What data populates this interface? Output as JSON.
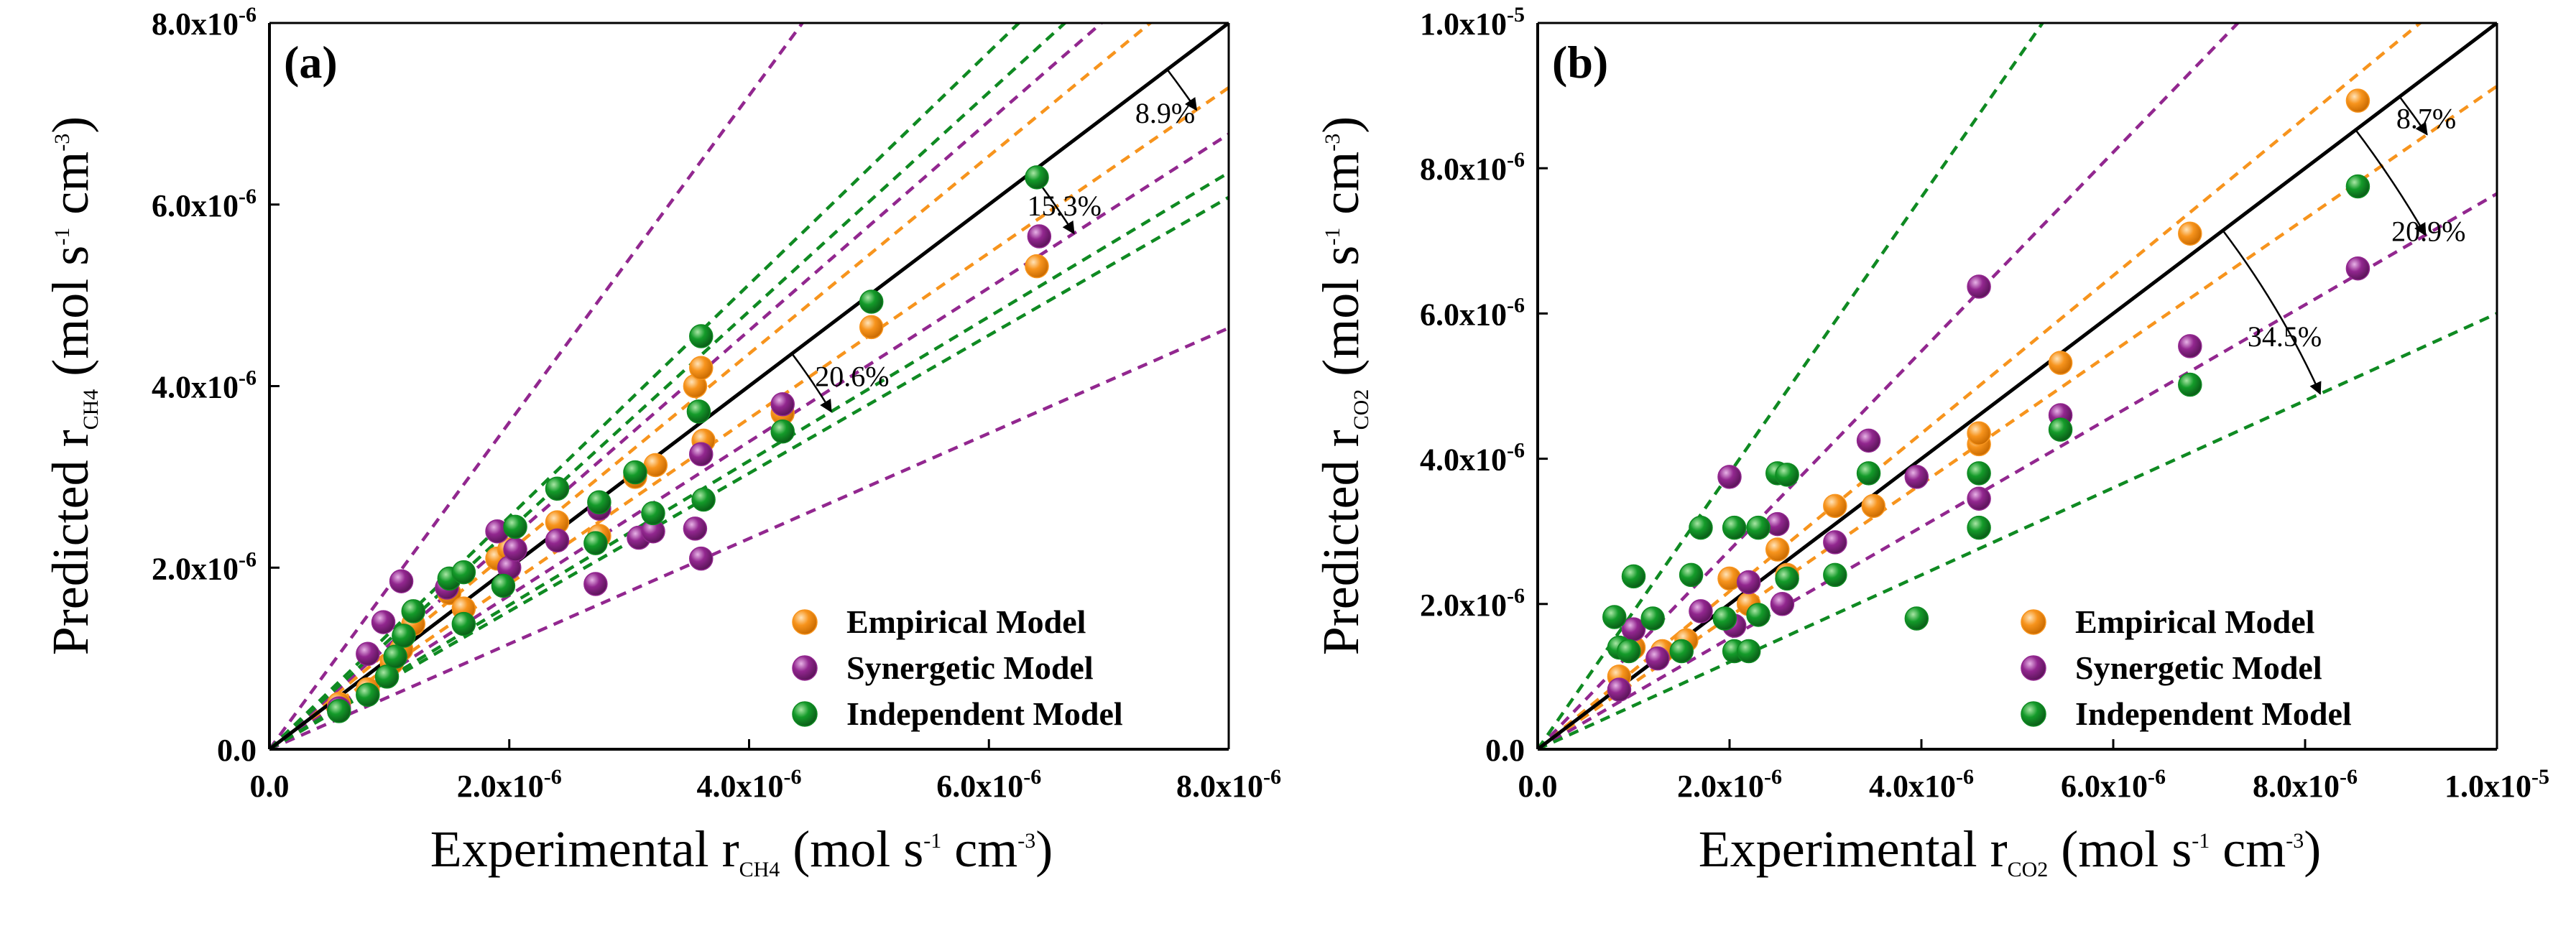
{
  "colors": {
    "empirical": "#f7941d",
    "synergetic": "#92278f",
    "independent": "#0f8a22",
    "parity": "#000000"
  },
  "chart_data": [
    {
      "type": "scatter",
      "panel_label": "(a)",
      "xlabel": {
        "main": "Experimental r",
        "sub": "CH4",
        "unit_a": " (mol s",
        "sup1": "-1",
        "unit_b": " cm",
        "sup2": "-3",
        "unit_c": ")"
      },
      "ylabel": {
        "main": "Predicted r",
        "sub": "CH4",
        "unit_a": " (mol s",
        "sup1": "-1",
        "unit_b": " cm",
        "sup2": "-3",
        "unit_c": ")"
      },
      "xlim": [
        0,
        8e-06
      ],
      "ylim": [
        0,
        8e-06
      ],
      "x_ticks": [
        {
          "value": 0,
          "mant": "0.0",
          "exp": ""
        },
        {
          "value": 2e-06,
          "mant": "2.0x10",
          "exp": "-6"
        },
        {
          "value": 4e-06,
          "mant": "4.0x10",
          "exp": "-6"
        },
        {
          "value": 6e-06,
          "mant": "6.0x10",
          "exp": "-6"
        },
        {
          "value": 8e-06,
          "mant": "8.0x10",
          "exp": "-6"
        }
      ],
      "y_ticks": [
        {
          "value": 0,
          "mant": "0.0",
          "exp": ""
        },
        {
          "value": 2e-06,
          "mant": "2.0x10",
          "exp": "-6"
        },
        {
          "value": 4e-06,
          "mant": "4.0x10",
          "exp": "-6"
        },
        {
          "value": 6e-06,
          "mant": "6.0x10",
          "exp": "-6"
        },
        {
          "value": 8e-06,
          "mant": "8.0x10",
          "exp": "-6"
        }
      ],
      "parity_line": {
        "slope": 1
      },
      "error_bands": [
        {
          "model": "empirical",
          "percent": "8.9%",
          "slopes": [
            1.089,
            0.911
          ]
        },
        {
          "model": "synergetic",
          "percent": "15.3%",
          "slopes": [
            1.153,
            0.847
          ]
        },
        {
          "model": "independent",
          "percent": "20.6%",
          "slopes": [
            1.206,
            0.794
          ]
        },
        {
          "model": "synergetic",
          "percent": "",
          "slopes": [
            1.8,
            0.58
          ]
        },
        {
          "model": "independent",
          "percent": "",
          "slopes": [
            1.28,
            0.76
          ]
        }
      ],
      "annotations": [
        {
          "text": "8.9%",
          "x": 7.22e-06,
          "y": 6.9e-06
        },
        {
          "text": "15.3%",
          "x": 6.32e-06,
          "y": 5.88e-06
        },
        {
          "text": "20.6%",
          "x": 4.55e-06,
          "y": 4e-06
        }
      ],
      "series": [
        {
          "name": "Empirical Model",
          "model": "empirical",
          "points": [
            [
              5.8e-07,
              5e-07
            ],
            [
              8.2e-07,
              6.6e-07
            ],
            [
              1.02e-06,
              9.5e-07
            ],
            [
              1.1e-06,
              1.1e-06
            ],
            [
              1.2e-06,
              1.38e-06
            ],
            [
              1.5e-06,
              1.72e-06
            ],
            [
              1.62e-06,
              1.55e-06
            ],
            [
              1.9e-06,
              2.1e-06
            ],
            [
              2e-06,
              2.2e-06
            ],
            [
              2.4e-06,
              2.5e-06
            ],
            [
              2.75e-06,
              2.35e-06
            ],
            [
              3.05e-06,
              3e-06
            ],
            [
              3.22e-06,
              3.13e-06
            ],
            [
              3.55e-06,
              4e-06
            ],
            [
              3.6e-06,
              4.2e-06
            ],
            [
              3.62e-06,
              3.4e-06
            ],
            [
              4.28e-06,
              3.7e-06
            ],
            [
              5.02e-06,
              4.65e-06
            ],
            [
              6.4e-06,
              5.32e-06
            ]
          ]
        },
        {
          "name": "Synergetic Model",
          "model": "synergetic",
          "points": [
            [
              5.8e-07,
              4.5e-07
            ],
            [
              8.2e-07,
              1.05e-06
            ],
            [
              9.5e-07,
              1.4e-06
            ],
            [
              1.1e-06,
              1.85e-06
            ],
            [
              1.48e-06,
              1.78e-06
            ],
            [
              1.9e-06,
              2.4e-06
            ],
            [
              2e-06,
              2e-06
            ],
            [
              2.05e-06,
              2.2e-06
            ],
            [
              2.4e-06,
              2.3e-06
            ],
            [
              2.72e-06,
              1.82e-06
            ],
            [
              2.75e-06,
              2.65e-06
            ],
            [
              3.08e-06,
              2.33e-06
            ],
            [
              3.2e-06,
              2.4e-06
            ],
            [
              3.55e-06,
              2.43e-06
            ],
            [
              3.6e-06,
              2.1e-06
            ],
            [
              3.6e-06,
              3.25e-06
            ],
            [
              4.28e-06,
              3.8e-06
            ],
            [
              6.42e-06,
              5.65e-06
            ]
          ]
        },
        {
          "name": "Independent Model",
          "model": "independent",
          "points": [
            [
              5.8e-07,
              4.2e-07
            ],
            [
              8.2e-07,
              6e-07
            ],
            [
              9.8e-07,
              8e-07
            ],
            [
              1.05e-06,
              1.02e-06
            ],
            [
              1.12e-06,
              1.25e-06
            ],
            [
              1.2e-06,
              1.52e-06
            ],
            [
              1.5e-06,
              1.88e-06
            ],
            [
              1.62e-06,
              1.38e-06
            ],
            [
              1.62e-06,
              1.95e-06
            ],
            [
              1.95e-06,
              1.8e-06
            ],
            [
              2.05e-06,
              2.45e-06
            ],
            [
              2.4e-06,
              2.87e-06
            ],
            [
              2.72e-06,
              2.27e-06
            ],
            [
              2.75e-06,
              2.72e-06
            ],
            [
              3.05e-06,
              3.05e-06
            ],
            [
              3.2e-06,
              2.6e-06
            ],
            [
              3.58e-06,
              3.72e-06
            ],
            [
              3.6e-06,
              4.55e-06
            ],
            [
              3.62e-06,
              2.75e-06
            ],
            [
              4.28e-06,
              3.5e-06
            ],
            [
              5.02e-06,
              4.93e-06
            ],
            [
              6.4e-06,
              6.3e-06
            ]
          ]
        }
      ],
      "legend": {
        "position": "bottom-right",
        "items": [
          "Empirical Model",
          "Synergetic Model",
          "Independent Model"
        ]
      }
    },
    {
      "type": "scatter",
      "panel_label": "(b)",
      "xlabel": {
        "main": "Experimental r",
        "sub": "CO2",
        "unit_a": " (mol s",
        "sup1": "-1",
        "unit_b": " cm",
        "sup2": "-3",
        "unit_c": ")"
      },
      "ylabel": {
        "main": "Predicted r",
        "sub": "CO2",
        "unit_a": " (mol s",
        "sup1": "-1",
        "unit_b": " cm",
        "sup2": "-3",
        "unit_c": ")"
      },
      "xlim": [
        0,
        1e-05
      ],
      "ylim": [
        0,
        1e-05
      ],
      "x_ticks": [
        {
          "value": 0,
          "mant": "0.0",
          "exp": ""
        },
        {
          "value": 2e-06,
          "mant": "2.0x10",
          "exp": "-6"
        },
        {
          "value": 4e-06,
          "mant": "4.0x10",
          "exp": "-6"
        },
        {
          "value": 6e-06,
          "mant": "6.0x10",
          "exp": "-6"
        },
        {
          "value": 8e-06,
          "mant": "8.0x10",
          "exp": "-6"
        },
        {
          "value": 1e-05,
          "mant": "1.0x10",
          "exp": "-5"
        }
      ],
      "y_ticks": [
        {
          "value": 0,
          "mant": "0.0",
          "exp": ""
        },
        {
          "value": 2e-06,
          "mant": "2.0x10",
          "exp": "-6"
        },
        {
          "value": 4e-06,
          "mant": "4.0x10",
          "exp": "-6"
        },
        {
          "value": 6e-06,
          "mant": "6.0x10",
          "exp": "-6"
        },
        {
          "value": 8e-06,
          "mant": "8.0x10",
          "exp": "-6"
        },
        {
          "value": 1e-05,
          "mant": "1.0x10",
          "exp": "-5"
        }
      ],
      "parity_line": {
        "slope": 1
      },
      "error_bands": [
        {
          "model": "empirical",
          "percent": "8.7%",
          "slopes": [
            1.087,
            0.913
          ]
        },
        {
          "model": "synergetic",
          "percent": "20.9%",
          "slopes": [
            1.37,
            0.765
          ]
        },
        {
          "model": "independent",
          "percent": "34.5%",
          "slopes": [
            1.9,
            0.6
          ]
        }
      ],
      "annotations": [
        {
          "text": "8.7%",
          "x": 8.95e-06,
          "y": 8.55e-06
        },
        {
          "text": "20.9%",
          "x": 8.9e-06,
          "y": 7e-06
        },
        {
          "text": "34.5%",
          "x": 7.4e-06,
          "y": 5.55e-06
        }
      ],
      "series": [
        {
          "name": "Empirical Model",
          "model": "empirical",
          "points": [
            [
              8.5e-07,
              1e-06
            ],
            [
              1e-06,
              1.4e-06
            ],
            [
              1.3e-06,
              1.35e-06
            ],
            [
              1.55e-06,
              1.5e-06
            ],
            [
              2e-06,
              2.35e-06
            ],
            [
              2.2e-06,
              2e-06
            ],
            [
              2.5e-06,
              2.75e-06
            ],
            [
              2.6e-06,
              2.4e-06
            ],
            [
              3.1e-06,
              3.35e-06
            ],
            [
              3.5e-06,
              3.35e-06
            ],
            [
              4.6e-06,
              4.2e-06
            ],
            [
              4.6e-06,
              4.35e-06
            ],
            [
              5.45e-06,
              5.32e-06
            ],
            [
              6.8e-06,
              7.1e-06
            ],
            [
              8.55e-06,
              8.93e-06
            ]
          ]
        },
        {
          "name": "Synergetic Model",
          "model": "synergetic",
          "points": [
            [
              8.5e-07,
              8.2e-07
            ],
            [
              1e-06,
              1.65e-06
            ],
            [
              1.25e-06,
              1.25e-06
            ],
            [
              1.7e-06,
              1.9e-06
            ],
            [
              2e-06,
              3.75e-06
            ],
            [
              2.05e-06,
              1.7e-06
            ],
            [
              2.2e-06,
              2.3e-06
            ],
            [
              2.5e-06,
              3.1e-06
            ],
            [
              2.55e-06,
              2e-06
            ],
            [
              3.1e-06,
              2.85e-06
            ],
            [
              3.45e-06,
              4.25e-06
            ],
            [
              3.95e-06,
              3.75e-06
            ],
            [
              4.6e-06,
              6.37e-06
            ],
            [
              4.6e-06,
              3.45e-06
            ],
            [
              5.45e-06,
              4.6e-06
            ],
            [
              6.8e-06,
              5.55e-06
            ],
            [
              8.55e-06,
              6.62e-06
            ]
          ]
        },
        {
          "name": "Independent Model",
          "model": "independent",
          "points": [
            [
              8e-07,
              1.82e-06
            ],
            [
              8.5e-07,
              1.4e-06
            ],
            [
              9.5e-07,
              1.35e-06
            ],
            [
              1e-06,
              2.38e-06
            ],
            [
              1.2e-06,
              1.8e-06
            ],
            [
              1.5e-06,
              1.35e-06
            ],
            [
              1.6e-06,
              2.4e-06
            ],
            [
              1.7e-06,
              3.05e-06
            ],
            [
              1.95e-06,
              1.8e-06
            ],
            [
              2.05e-06,
              1.35e-06
            ],
            [
              2.05e-06,
              3.05e-06
            ],
            [
              2.2e-06,
              1.35e-06
            ],
            [
              2.3e-06,
              1.85e-06
            ],
            [
              2.3e-06,
              3.05e-06
            ],
            [
              2.5e-06,
              3.8e-06
            ],
            [
              2.6e-06,
              3.78e-06
            ],
            [
              2.6e-06,
              2.35e-06
            ],
            [
              3.1e-06,
              2.4e-06
            ],
            [
              3.45e-06,
              3.8e-06
            ],
            [
              3.95e-06,
              1.8e-06
            ],
            [
              4.6e-06,
              3.05e-06
            ],
            [
              4.6e-06,
              3.8e-06
            ],
            [
              5.45e-06,
              4.4e-06
            ],
            [
              6.8e-06,
              5.02e-06
            ],
            [
              8.55e-06,
              7.75e-06
            ]
          ]
        }
      ],
      "legend": {
        "position": "bottom-right",
        "items": [
          "Empirical Model",
          "Synergetic Model",
          "Independent Model"
        ]
      }
    }
  ]
}
